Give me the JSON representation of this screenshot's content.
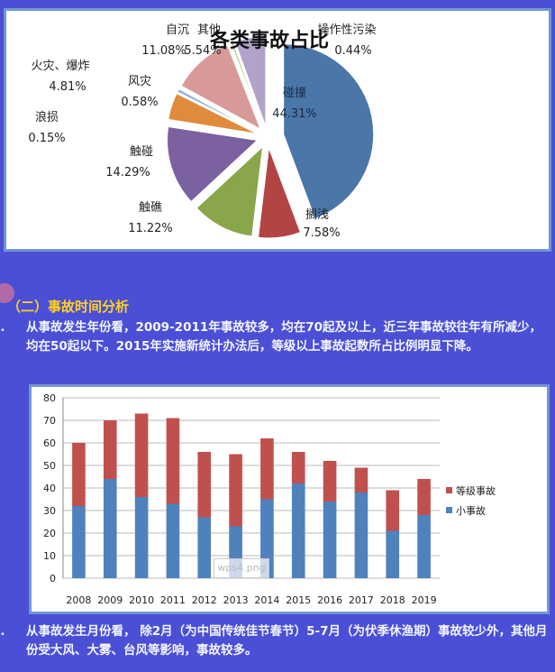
{
  "chart_data": [
    {
      "type": "pie",
      "title": "各类事故占比",
      "slices": [
        {
          "label": "碰撞",
          "value": 44.31,
          "pct": "44.31%",
          "color": "#4a76a8"
        },
        {
          "label": "搁浅",
          "value": 7.58,
          "pct": "7.58%",
          "color": "#b24443"
        },
        {
          "label": "触礁",
          "value": 11.22,
          "pct": "11.22%",
          "color": "#8aa64a"
        },
        {
          "label": "触碰",
          "value": 14.29,
          "pct": "14.29%",
          "color": "#7b61a0"
        },
        {
          "label": "浪损",
          "value": 0.15,
          "pct": "0.15%",
          "color": "#2e8a9c"
        },
        {
          "label": "火灾、爆炸",
          "value": 4.81,
          "pct": "4.81%",
          "color": "#e08a3c"
        },
        {
          "label": "风灾",
          "value": 0.58,
          "pct": "0.58%",
          "color": "#8fb0d8"
        },
        {
          "label": "自沉",
          "value": 11.08,
          "pct": "11.08%",
          "color": "#d89a98"
        },
        {
          "label": "操作性污染",
          "value": 0.44,
          "pct": "0.44%",
          "color": "#b8cc90"
        },
        {
          "label": "其他",
          "value": 5.54,
          "pct": "5.54%",
          "color": "#b0a2c8"
        }
      ]
    },
    {
      "type": "bar",
      "stacked": true,
      "categories": [
        "2008",
        "2009",
        "2010",
        "2011",
        "2012",
        "2013",
        "2014",
        "2015",
        "2016",
        "2017",
        "2018",
        "2019"
      ],
      "series": [
        {
          "name": "小事故",
          "values": [
            32,
            44,
            36,
            33,
            27,
            23,
            35,
            42,
            34,
            38,
            21,
            28
          ],
          "color": "#4f81bd"
        },
        {
          "name": "等级事故",
          "values": [
            28,
            26,
            37,
            38,
            29,
            32,
            27,
            14,
            18,
            11,
            18,
            16
          ],
          "color": "#c0504d"
        }
      ],
      "ylim": [
        0,
        80
      ],
      "yticks": [
        0,
        10,
        20,
        30,
        40,
        50,
        60,
        70,
        80
      ],
      "grid": true,
      "legend": "right"
    }
  ],
  "watermark": "wps4.png",
  "section": {
    "heading": "（二）事故时间分析",
    "items": [
      {
        "num": "1.",
        "text": "从事故发生年份看，2009-2011年事故较多，均在70起及以上，近三年事故较往年有所减少，均在50起以下。2015年实施新统计办法后，等级以上事故起数所占比例明显下降。"
      },
      {
        "num": "2.",
        "text": "从事故发生月份看， 除2月（为中国传统佳节春节）5-7月（为伏季休渔期）事故较少外，其他月份受大风、大雾、台风等影响，事故较多。"
      }
    ]
  }
}
